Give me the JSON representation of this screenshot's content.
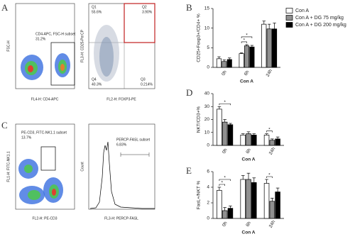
{
  "panel_letters": [
    "A",
    "B",
    "C",
    "D",
    "E"
  ],
  "flow_panels": [
    {
      "plots": [
        {
          "ylabel": "FSC-H",
          "xlabel": "FL4-H: CD4-APC",
          "gate_label": "CD4-APC, FSC-H subset",
          "gate_value": "31.2%"
        },
        {
          "ylabel": "FL3-H: CD25-PerCP",
          "xlabel": "FL2-H: FOXP3-PE",
          "quadrants": [
            {
              "name": "Q1",
              "value": "55.6%"
            },
            {
              "name": "Q2",
              "value": "3.90%"
            },
            {
              "name": "Q3",
              "value": "0.214%"
            },
            {
              "name": "Q4",
              "value": "40.3%"
            }
          ]
        }
      ]
    },
    {
      "plots": [
        {
          "ylabel": "FL1-H: FITC-NK1.1",
          "xlabel": "FL2-H: PE-CD3",
          "gate_label": "PE-CD3, FITC-NK1.1 subset",
          "gate_value": "13.7%"
        },
        {
          "ylabel": "Count",
          "xlabel": "FL3-H: PERCP-FASL",
          "gate_label": "PERCP-FASL subset",
          "gate_value": "6.83%"
        }
      ]
    }
  ],
  "chart_data": [
    {
      "type": "bar",
      "ylabel": "CD25+Foxp3+/CD4+ %",
      "xlabel": "Con A",
      "categories": [
        "0h",
        "6h",
        "24h"
      ],
      "series": [
        {
          "name": "Con A",
          "color": "#ffffff",
          "values": [
            2.2,
            3.5,
            11
          ],
          "errors": [
            0.5,
            0.2,
            0.8
          ]
        },
        {
          "name": "Con A + DG 75 mg/kg",
          "color": "#909090",
          "values": [
            1.5,
            5.5,
            9.8
          ],
          "errors": [
            0.4,
            0.3,
            1.2
          ]
        },
        {
          "name": "Con A + DG 200 mg/kg",
          "color": "#000000",
          "values": [
            2.0,
            5.2,
            9.8
          ],
          "errors": [
            0.4,
            0.4,
            1.5
          ]
        }
      ],
      "ylim": [
        0,
        15
      ],
      "yticks": [
        0,
        5,
        10,
        15
      ],
      "significance": [
        {
          "label": "*",
          "category": 1,
          "from": 0,
          "to": 1
        },
        {
          "label": "*",
          "category": 1,
          "from": 0,
          "to": 2
        }
      ]
    },
    {
      "type": "bar",
      "ylabel": "NKT/CD3+%",
      "xlabel": "Con A",
      "categories": [
        "0h",
        "6h",
        "24h"
      ],
      "series": [
        {
          "color": "#ffffff",
          "values": [
            28,
            8,
            8
          ],
          "errors": [
            2,
            1,
            1
          ]
        },
        {
          "color": "#909090",
          "values": [
            18,
            9,
            4
          ],
          "errors": [
            2,
            1.5,
            1
          ]
        },
        {
          "color": "#000000",
          "values": [
            16,
            8,
            5
          ],
          "errors": [
            1,
            1,
            1.5
          ]
        }
      ],
      "ylim": [
        0,
        40
      ],
      "yticks": [
        0,
        10,
        20,
        30,
        40
      ],
      "significance": [
        {
          "label": "*",
          "category": 0,
          "from": 0,
          "to": 2
        },
        {
          "label": "*",
          "category": 2,
          "from": 0,
          "to": 1
        }
      ]
    },
    {
      "type": "bar",
      "ylabel": "FasL+/NKT %",
      "xlabel": "Con A",
      "categories": [
        "0h",
        "6h",
        "24h"
      ],
      "series": [
        {
          "color": "#ffffff",
          "values": [
            3.6,
            5.0,
            4.5
          ],
          "errors": [
            0.4,
            0.5,
            0.5
          ]
        },
        {
          "color": "#909090",
          "values": [
            1.0,
            5.0,
            2.2
          ],
          "errors": [
            0.4,
            0.8,
            0.4
          ]
        },
        {
          "color": "#000000",
          "values": [
            1.3,
            4.6,
            3.4
          ],
          "errors": [
            0.3,
            0.6,
            0.5
          ]
        }
      ],
      "ylim": [
        0,
        6
      ],
      "yticks": [
        0,
        2,
        4,
        6
      ],
      "significance": [
        {
          "label": "*",
          "category": 0,
          "from": 0,
          "to": 1
        },
        {
          "label": "*",
          "category": 0,
          "from": 0,
          "to": 2
        },
        {
          "label": "*",
          "category": 2,
          "from": 0,
          "to": 1
        }
      ]
    }
  ]
}
